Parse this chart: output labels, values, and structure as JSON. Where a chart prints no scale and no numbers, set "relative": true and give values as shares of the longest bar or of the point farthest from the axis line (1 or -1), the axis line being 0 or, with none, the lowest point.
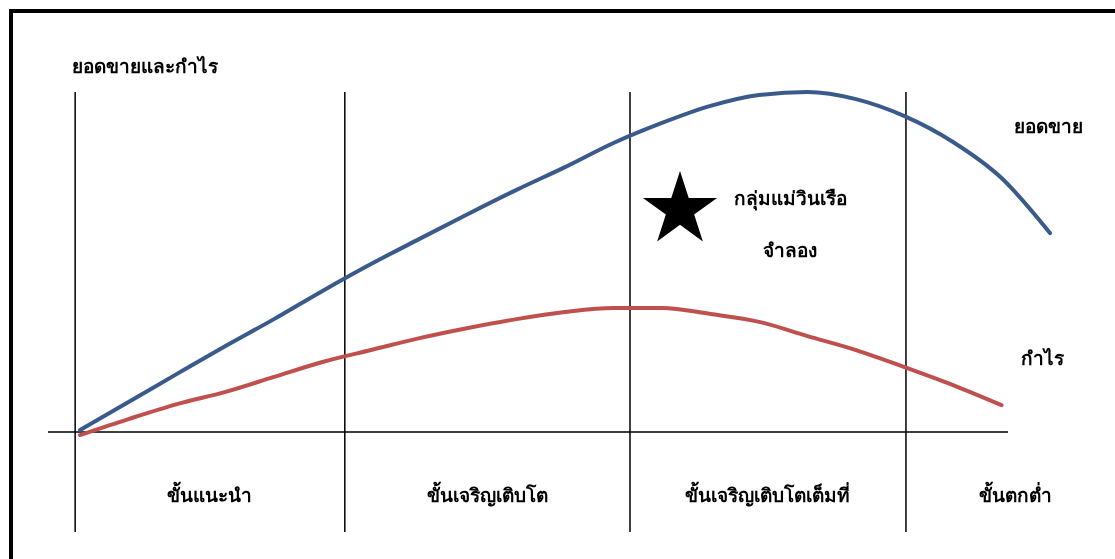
{
  "chart_data": {
    "type": "line",
    "relative": true,
    "ylabel": "ยอดขายและกำไร",
    "categories": [
      null,
      null,
      null,
      null,
      null,
      null,
      null,
      null,
      null,
      null,
      null,
      null,
      null,
      null,
      null,
      null,
      null,
      null,
      null,
      null,
      null
    ],
    "series": [
      {
        "name": "ยอดขาย",
        "color": "#3a5a8c",
        "values": [
          0.006,
          0.088,
          0.171,
          0.253,
          0.332,
          0.415,
          0.494,
          0.568,
          0.641,
          0.712,
          0.779,
          0.85,
          0.909,
          0.959,
          0.991,
          1,
          0.979,
          0.929,
          0.853,
          0.747,
          0.585
        ]
      },
      {
        "name": "กำไร",
        "color": "#c0504d",
        "values": [
          -0.009,
          0.038,
          0.082,
          0.118,
          0.162,
          0.206,
          0.241,
          0.276,
          0.306,
          0.332,
          0.353,
          0.365,
          0.365,
          0.347,
          0.324,
          0.282,
          0.241,
          0.191,
          0.138,
          0.079,
          null
        ]
      }
    ],
    "annotations": [
      "ขั้นแนะนำ",
      "ขั้นเจริญเติบโต",
      "ขั้นเจริญเติบโตเต็มที่",
      "ขั้นตกต่ำ",
      "กลุ่มแม่วินเรือ\nจำลอง"
    ]
  }
}
